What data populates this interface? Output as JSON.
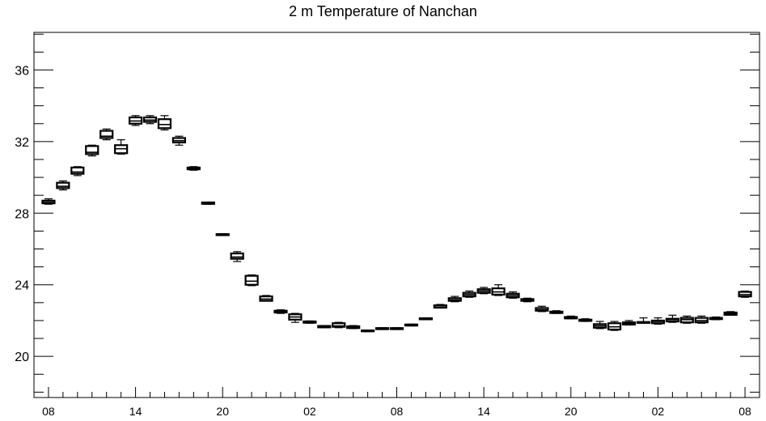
{
  "chart_data": {
    "type": "box",
    "title": "2 m Temperature of Nanchan",
    "xlabel": "",
    "ylabel": "",
    "ylim": [
      17.7,
      38.1
    ],
    "y_ticks": [
      20,
      24,
      28,
      32,
      36
    ],
    "x_ticks": [
      "08",
      "14",
      "20",
      "02",
      "08",
      "14",
      "20",
      "02",
      "08"
    ],
    "x_tick_positions": [
      0,
      6,
      12,
      18,
      24,
      30,
      36,
      42,
      48
    ],
    "xlim": [
      -1,
      49
    ],
    "grid": false,
    "legend": "none",
    "boxes": [
      {
        "x": 0,
        "min": 28.5,
        "q1": 28.55,
        "median": 28.6,
        "q3": 28.7,
        "max": 28.8
      },
      {
        "x": 1,
        "min": 29.3,
        "q1": 29.4,
        "median": 29.5,
        "q3": 29.7,
        "max": 29.8
      },
      {
        "x": 2,
        "min": 30.1,
        "q1": 30.2,
        "median": 30.3,
        "q3": 30.55,
        "max": 30.6
      },
      {
        "x": 3,
        "min": 31.2,
        "q1": 31.3,
        "median": 31.4,
        "q3": 31.75,
        "max": 31.8
      },
      {
        "x": 4,
        "min": 32.1,
        "q1": 32.2,
        "median": 32.3,
        "q3": 32.6,
        "max": 32.7
      },
      {
        "x": 5,
        "min": 31.3,
        "q1": 31.35,
        "median": 31.6,
        "q3": 31.8,
        "max": 32.1
      },
      {
        "x": 6,
        "min": 32.9,
        "q1": 33.0,
        "median": 33.15,
        "q3": 33.35,
        "max": 33.45
      },
      {
        "x": 7,
        "min": 33.0,
        "q1": 33.1,
        "median": 33.2,
        "q3": 33.35,
        "max": 33.45
      },
      {
        "x": 8,
        "min": 32.65,
        "q1": 32.75,
        "median": 32.95,
        "q3": 33.25,
        "max": 33.45
      },
      {
        "x": 9,
        "min": 31.8,
        "q1": 31.95,
        "median": 32.05,
        "q3": 32.2,
        "max": 32.3
      },
      {
        "x": 10,
        "min": 30.4,
        "q1": 30.45,
        "median": 30.5,
        "q3": 30.55,
        "max": 30.6
      },
      {
        "x": 11,
        "min": 28.5,
        "q1": 28.52,
        "median": 28.55,
        "q3": 28.6,
        "max": 28.62
      },
      {
        "x": 12,
        "min": 26.75,
        "q1": 26.77,
        "median": 26.8,
        "q3": 26.83,
        "max": 26.85
      },
      {
        "x": 13,
        "min": 25.3,
        "q1": 25.45,
        "median": 25.55,
        "q3": 25.75,
        "max": 25.85
      },
      {
        "x": 14,
        "min": 23.95,
        "q1": 24.0,
        "median": 24.2,
        "q3": 24.5,
        "max": 24.55
      },
      {
        "x": 15,
        "min": 23.1,
        "q1": 23.1,
        "median": 23.2,
        "q3": 23.35,
        "max": 23.4
      },
      {
        "x": 16,
        "min": 22.4,
        "q1": 22.45,
        "median": 22.5,
        "q3": 22.55,
        "max": 22.6
      },
      {
        "x": 17,
        "min": 21.9,
        "q1": 22.05,
        "median": 22.2,
        "q3": 22.35,
        "max": 22.4
      },
      {
        "x": 18,
        "min": 21.85,
        "q1": 21.88,
        "median": 21.9,
        "q3": 21.95,
        "max": 21.98
      },
      {
        "x": 19,
        "min": 21.6,
        "q1": 21.62,
        "median": 21.65,
        "q3": 21.7,
        "max": 21.72
      },
      {
        "x": 20,
        "min": 21.6,
        "q1": 21.65,
        "median": 21.7,
        "q3": 21.85,
        "max": 21.9
      },
      {
        "x": 21,
        "min": 21.55,
        "q1": 21.58,
        "median": 21.62,
        "q3": 21.68,
        "max": 21.72
      },
      {
        "x": 22,
        "min": 21.38,
        "q1": 21.4,
        "median": 21.42,
        "q3": 21.45,
        "max": 21.47
      },
      {
        "x": 23,
        "min": 21.5,
        "q1": 21.52,
        "median": 21.55,
        "q3": 21.58,
        "max": 21.6
      },
      {
        "x": 24,
        "min": 21.5,
        "q1": 21.52,
        "median": 21.55,
        "q3": 21.58,
        "max": 21.6
      },
      {
        "x": 25,
        "min": 21.7,
        "q1": 21.72,
        "median": 21.75,
        "q3": 21.78,
        "max": 21.8
      },
      {
        "x": 26,
        "min": 22.05,
        "q1": 22.07,
        "median": 22.1,
        "q3": 22.13,
        "max": 22.15
      },
      {
        "x": 27,
        "min": 22.7,
        "q1": 22.72,
        "median": 22.75,
        "q3": 22.85,
        "max": 22.9
      },
      {
        "x": 28,
        "min": 23.05,
        "q1": 23.1,
        "median": 23.15,
        "q3": 23.25,
        "max": 23.35
      },
      {
        "x": 29,
        "min": 23.3,
        "q1": 23.35,
        "median": 23.45,
        "q3": 23.55,
        "max": 23.65
      },
      {
        "x": 30,
        "min": 23.5,
        "q1": 23.55,
        "median": 23.65,
        "q3": 23.75,
        "max": 23.85
      },
      {
        "x": 31,
        "min": 23.4,
        "q1": 23.45,
        "median": 23.6,
        "q3": 23.8,
        "max": 24.0
      },
      {
        "x": 32,
        "min": 23.25,
        "q1": 23.3,
        "median": 23.4,
        "q3": 23.5,
        "max": 23.6
      },
      {
        "x": 33,
        "min": 23.05,
        "q1": 23.1,
        "median": 23.15,
        "q3": 23.2,
        "max": 23.25
      },
      {
        "x": 34,
        "min": 22.5,
        "q1": 22.55,
        "median": 22.6,
        "q3": 22.7,
        "max": 22.8
      },
      {
        "x": 35,
        "min": 22.4,
        "q1": 22.42,
        "median": 22.45,
        "q3": 22.5,
        "max": 22.55
      },
      {
        "x": 36,
        "min": 22.1,
        "q1": 22.12,
        "median": 22.15,
        "q3": 22.2,
        "max": 22.25
      },
      {
        "x": 37,
        "min": 21.95,
        "q1": 21.98,
        "median": 22.0,
        "q3": 22.05,
        "max": 22.1
      },
      {
        "x": 38,
        "min": 21.55,
        "q1": 21.6,
        "median": 21.7,
        "q3": 21.8,
        "max": 21.95
      },
      {
        "x": 39,
        "min": 21.45,
        "q1": 21.5,
        "median": 21.65,
        "q3": 21.85,
        "max": 21.95
      },
      {
        "x": 40,
        "min": 21.75,
        "q1": 21.78,
        "median": 21.85,
        "q3": 21.9,
        "max": 22.0
      },
      {
        "x": 41,
        "min": 21.85,
        "q1": 21.87,
        "median": 21.9,
        "q3": 21.92,
        "max": 22.15
      },
      {
        "x": 42,
        "min": 21.8,
        "q1": 21.85,
        "median": 21.95,
        "q3": 22.0,
        "max": 22.15
      },
      {
        "x": 43,
        "min": 21.9,
        "q1": 21.95,
        "median": 22.05,
        "q3": 22.1,
        "max": 22.3
      },
      {
        "x": 44,
        "min": 21.85,
        "q1": 21.9,
        "median": 22.05,
        "q3": 22.15,
        "max": 22.25
      },
      {
        "x": 45,
        "min": 21.85,
        "q1": 21.9,
        "median": 22.0,
        "q3": 22.15,
        "max": 22.25
      },
      {
        "x": 46,
        "min": 22.05,
        "q1": 22.08,
        "median": 22.12,
        "q3": 22.15,
        "max": 22.2
      },
      {
        "x": 47,
        "min": 22.3,
        "q1": 22.32,
        "median": 22.38,
        "q3": 22.45,
        "max": 22.5
      },
      {
        "x": 48,
        "min": 23.3,
        "q1": 23.35,
        "median": 23.45,
        "q3": 23.6,
        "max": 23.65
      }
    ]
  }
}
